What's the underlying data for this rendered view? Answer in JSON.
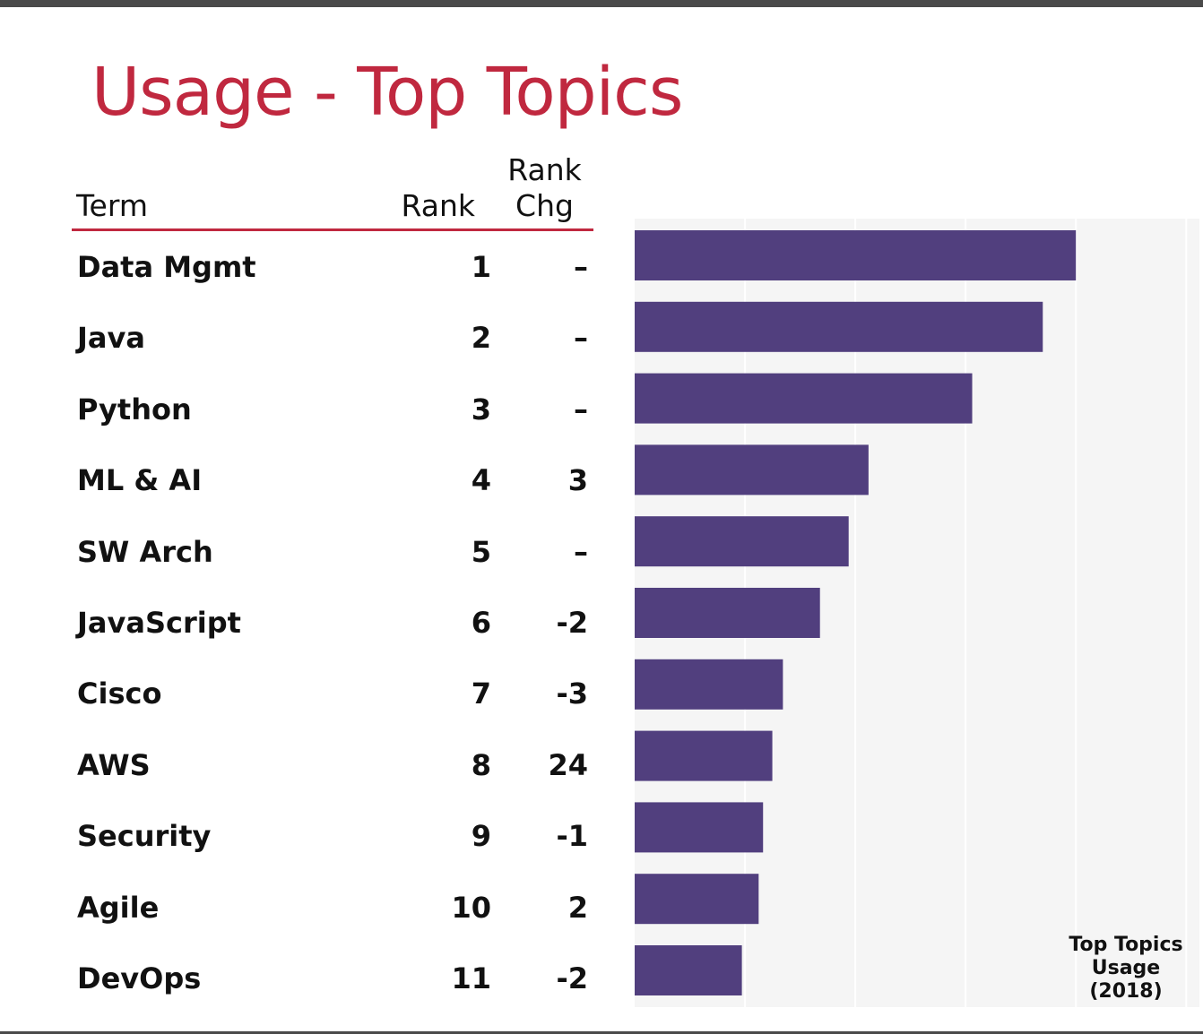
{
  "title": "Usage - Top Topics",
  "table": {
    "headers": {
      "term": "Term",
      "rank": "Rank",
      "rank_chg_line1": "Rank",
      "rank_chg_line2": "Chg"
    },
    "rows": [
      {
        "term": "Data Mgmt",
        "rank": "1",
        "chg": "–"
      },
      {
        "term": "Java",
        "rank": "2",
        "chg": "–"
      },
      {
        "term": "Python",
        "rank": "3",
        "chg": "–"
      },
      {
        "term": "ML & AI",
        "rank": "4",
        "chg": "3"
      },
      {
        "term": "SW Arch",
        "rank": "5",
        "chg": "–"
      },
      {
        "term": "JavaScript",
        "rank": "6",
        "chg": "-2"
      },
      {
        "term": "Cisco",
        "rank": "7",
        "chg": "-3"
      },
      {
        "term": "AWS",
        "rank": "8",
        "chg": "24"
      },
      {
        "term": "Security",
        "rank": "9",
        "chg": "-1"
      },
      {
        "term": "Agile",
        "rank": "10",
        "chg": "2"
      },
      {
        "term": "DevOps",
        "rank": "11",
        "chg": "-2"
      }
    ]
  },
  "chart_data": {
    "type": "bar",
    "orientation": "horizontal",
    "title": "Top Topics Usage (2018)",
    "title_lines": [
      "Top Topics",
      "Usage",
      "(2018)"
    ],
    "categories": [
      "Data Mgmt",
      "Java",
      "Python",
      "ML & AI",
      "SW Arch",
      "JavaScript",
      "Cisco",
      "AWS",
      "Security",
      "Agile",
      "DevOps"
    ],
    "values": [
      100,
      92.5,
      76.5,
      53,
      48.5,
      42,
      33.6,
      31.2,
      29.1,
      28.1,
      24.3
    ],
    "xlim": [
      0,
      128
    ],
    "grid": true,
    "colors": {
      "bar": "#513f7e",
      "plot_bg": "#f5f5f5",
      "grid": "#ffffff",
      "title": "#c0283f",
      "rule": "#c0283f"
    }
  }
}
